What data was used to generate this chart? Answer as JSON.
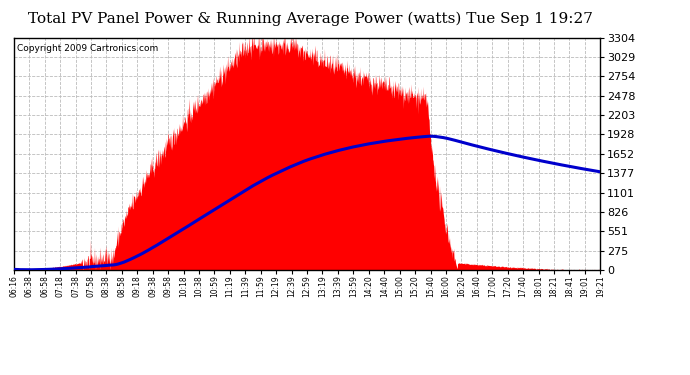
{
  "title": "Total PV Panel Power & Running Average Power (watts) Tue Sep 1 19:27",
  "copyright": "Copyright 2009 Cartronics.com",
  "y_max": 3304.3,
  "y_min": 0.0,
  "y_ticks": [
    0.0,
    275.4,
    550.7,
    826.1,
    1101.4,
    1376.8,
    1652.1,
    1927.5,
    2202.9,
    2478.2,
    2753.6,
    3028.9,
    3304.3
  ],
  "x_labels": [
    "06:16",
    "06:38",
    "06:58",
    "07:18",
    "07:38",
    "07:58",
    "08:38",
    "08:58",
    "09:18",
    "09:38",
    "09:58",
    "10:18",
    "10:38",
    "10:59",
    "11:19",
    "11:39",
    "11:59",
    "12:19",
    "12:39",
    "12:59",
    "13:19",
    "13:39",
    "13:59",
    "14:20",
    "14:40",
    "15:00",
    "15:20",
    "15:40",
    "16:00",
    "16:20",
    "16:40",
    "17:00",
    "17:20",
    "17:40",
    "18:01",
    "18:21",
    "18:41",
    "19:01",
    "19:21"
  ],
  "background_color": "#ffffff",
  "fill_color": "#ff0000",
  "line_color": "#0000cc",
  "grid_color": "#bbbbbb",
  "title_color": "#000000",
  "copyright_color": "#000000",
  "title_fontsize": 11,
  "copyright_fontsize": 6.5,
  "ytick_fontsize": 8,
  "xtick_fontsize": 5.5
}
